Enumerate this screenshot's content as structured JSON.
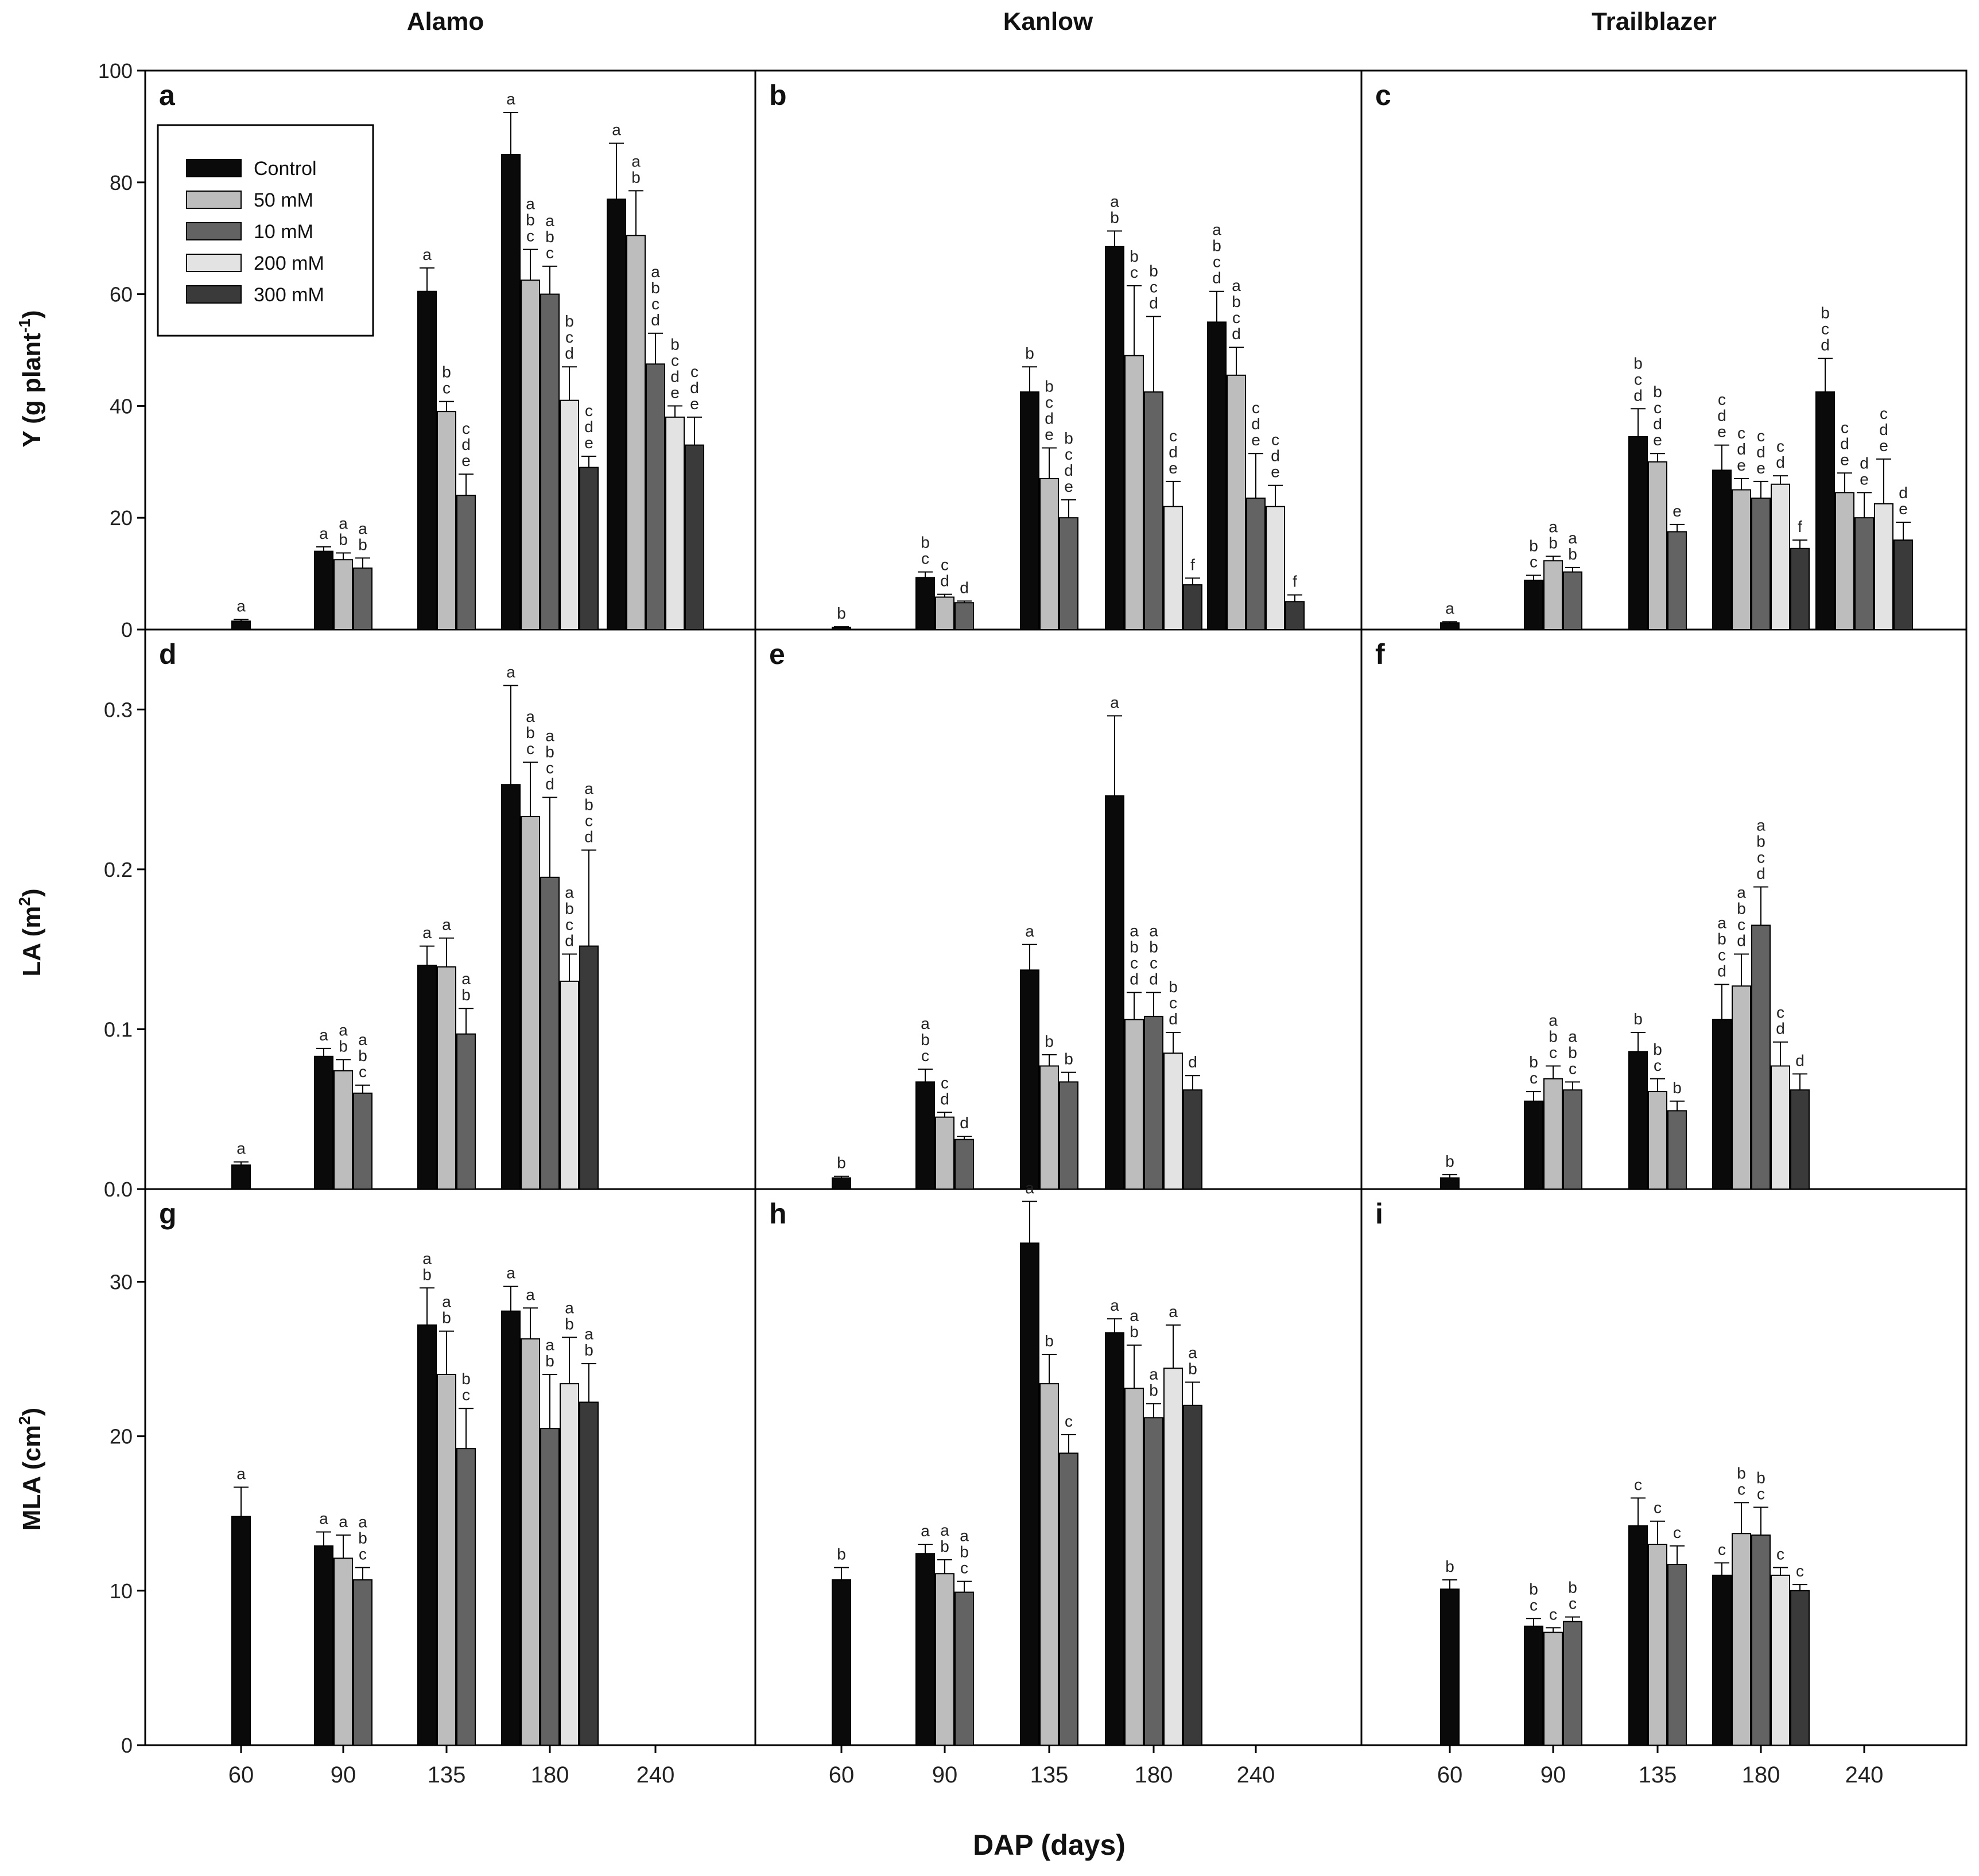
{
  "figure": {
    "columns": [
      "Alamo",
      "Kanlow",
      "Trailblazer"
    ],
    "ylabels": [
      {
        "main": "Y (g plant",
        "sup": "-1",
        "tail": ")"
      },
      {
        "main": "LA (m",
        "sup": "2",
        "tail": ")"
      },
      {
        "main": "MLA (cm",
        "sup": "2",
        "tail": ")"
      }
    ],
    "xlabel": "DAP (days)",
    "legend": [
      "Control",
      "50 mM",
      "10 mM",
      "200 mM",
      "300 mM"
    ]
  },
  "chart_data": {
    "type": "bar",
    "categories": [
      "60",
      "90",
      "135",
      "180",
      "240"
    ],
    "series_names": [
      "Control",
      "50 mM",
      "10 mM",
      "200 mM",
      "300 mM"
    ],
    "series_colors": [
      "#0a0a0a",
      "#bdbdbd",
      "#636363",
      "#e3e3e3",
      "#3a3a3a"
    ],
    "rows": [
      {
        "ylim": [
          0,
          100
        ],
        "yticks": [
          0,
          20,
          40,
          60,
          80,
          100
        ],
        "yticklabels": [
          "0",
          "20",
          "40",
          "60",
          "80",
          "100"
        ]
      },
      {
        "ylim": [
          0,
          0.35
        ],
        "yticks": [
          0,
          0.1,
          0.2,
          0.3
        ],
        "yticklabels": [
          "0.0",
          "0.1",
          "0.2",
          "0.3"
        ]
      },
      {
        "ylim": [
          0,
          36
        ],
        "yticks": [
          0,
          10,
          20,
          30
        ],
        "yticklabels": [
          "0",
          "10",
          "20",
          "30"
        ]
      }
    ],
    "panels": [
      {
        "id": "a",
        "row": 0,
        "col": 0,
        "groups": [
          {
            "cat": "60",
            "bars": [
              {
                "v": 1.5,
                "e": 0.3,
                "l": "a"
              }
            ]
          },
          {
            "cat": "90",
            "bars": [
              {
                "v": 14,
                "e": 0.8,
                "l": "a"
              },
              {
                "v": 12.5,
                "e": 1.2,
                "l": "ab"
              },
              {
                "v": 11,
                "e": 1.8,
                "l": "ab"
              }
            ]
          },
          {
            "cat": "135",
            "bars": [
              {
                "v": 60.5,
                "e": 4.2,
                "l": "a"
              },
              {
                "v": 39,
                "e": 1.8,
                "l": "bc"
              },
              {
                "v": 24,
                "e": 3.8,
                "l": "cde"
              }
            ]
          },
          {
            "cat": "180",
            "bars": [
              {
                "v": 85,
                "e": 7.5,
                "l": "a"
              },
              {
                "v": 62.5,
                "e": 5.5,
                "l": "abc"
              },
              {
                "v": 60,
                "e": 5,
                "l": "abc"
              },
              {
                "v": 41,
                "e": 6,
                "l": "bcd"
              },
              {
                "v": 29,
                "e": 2,
                "l": "cde"
              }
            ]
          },
          {
            "cat": "240",
            "bars": [
              {
                "v": 77,
                "e": 10,
                "l": "a"
              },
              {
                "v": 70.5,
                "e": 8,
                "l": "ab"
              },
              {
                "v": 47.5,
                "e": 5.5,
                "l": "abcd"
              },
              {
                "v": 38,
                "e": 2,
                "l": "bcde"
              },
              {
                "v": 33,
                "e": 5,
                "l": "cde"
              }
            ]
          }
        ]
      },
      {
        "id": "b",
        "row": 0,
        "col": 1,
        "groups": [
          {
            "cat": "60",
            "bars": [
              {
                "v": 0.4,
                "e": 0.1,
                "l": "b"
              }
            ]
          },
          {
            "cat": "90",
            "bars": [
              {
                "v": 9.3,
                "e": 1,
                "l": "bc"
              },
              {
                "v": 5.8,
                "e": 0.5,
                "l": "cd"
              },
              {
                "v": 4.8,
                "e": 0.3,
                "l": "d"
              }
            ]
          },
          {
            "cat": "135",
            "bars": [
              {
                "v": 42.5,
                "e": 4.5,
                "l": "b"
              },
              {
                "v": 27,
                "e": 5.5,
                "l": "bcde"
              },
              {
                "v": 20,
                "e": 3.2,
                "l": "bcde"
              }
            ]
          },
          {
            "cat": "180",
            "bars": [
              {
                "v": 68.5,
                "e": 2.8,
                "l": "ab"
              },
              {
                "v": 49,
                "e": 12.5,
                "l": "bc"
              },
              {
                "v": 42.5,
                "e": 13.5,
                "l": "bcd"
              },
              {
                "v": 22,
                "e": 4.5,
                "l": "cde"
              },
              {
                "v": 8,
                "e": 1.2,
                "l": "f"
              }
            ]
          },
          {
            "cat": "240",
            "bars": [
              {
                "v": 55,
                "e": 5.5,
                "l": "abcd"
              },
              {
                "v": 45.5,
                "e": 5,
                "l": "abcd"
              },
              {
                "v": 23.5,
                "e": 8,
                "l": "cde"
              },
              {
                "v": 22,
                "e": 3.8,
                "l": "cde"
              },
              {
                "v": 5,
                "e": 1.2,
                "l": "f"
              }
            ]
          }
        ]
      },
      {
        "id": "c",
        "row": 0,
        "col": 2,
        "groups": [
          {
            "cat": "60",
            "bars": [
              {
                "v": 1.2,
                "e": 0.2,
                "l": "a"
              }
            ]
          },
          {
            "cat": "90",
            "bars": [
              {
                "v": 8.8,
                "e": 0.9,
                "l": "bc"
              },
              {
                "v": 12.3,
                "e": 0.8,
                "l": "ab"
              },
              {
                "v": 10.3,
                "e": 0.8,
                "l": "ab"
              }
            ]
          },
          {
            "cat": "135",
            "bars": [
              {
                "v": 34.5,
                "e": 5,
                "l": "bcd"
              },
              {
                "v": 30,
                "e": 1.5,
                "l": "bcde"
              },
              {
                "v": 17.5,
                "e": 1.3,
                "l": "e"
              }
            ]
          },
          {
            "cat": "180",
            "bars": [
              {
                "v": 28.5,
                "e": 4.5,
                "l": "cde"
              },
              {
                "v": 25,
                "e": 2,
                "l": "cde"
              },
              {
                "v": 23.5,
                "e": 3,
                "l": "cde"
              },
              {
                "v": 26,
                "e": 1.5,
                "l": "cd"
              },
              {
                "v": 14.5,
                "e": 1.5,
                "l": "f"
              }
            ]
          },
          {
            "cat": "240",
            "bars": [
              {
                "v": 42.5,
                "e": 6,
                "l": "bcd"
              },
              {
                "v": 24.5,
                "e": 3.5,
                "l": "cde"
              },
              {
                "v": 20,
                "e": 4.5,
                "l": "de"
              },
              {
                "v": 22.5,
                "e": 8,
                "l": "cde"
              },
              {
                "v": 16,
                "e": 3.2,
                "l": "de"
              }
            ]
          }
        ]
      },
      {
        "id": "d",
        "row": 1,
        "col": 0,
        "groups": [
          {
            "cat": "60",
            "bars": [
              {
                "v": 0.015,
                "e": 0.002,
                "l": "a"
              }
            ]
          },
          {
            "cat": "90",
            "bars": [
              {
                "v": 0.083,
                "e": 0.005,
                "l": "a"
              },
              {
                "v": 0.074,
                "e": 0.007,
                "l": "ab"
              },
              {
                "v": 0.06,
                "e": 0.005,
                "l": "abc"
              }
            ]
          },
          {
            "cat": "135",
            "bars": [
              {
                "v": 0.14,
                "e": 0.012,
                "l": "a"
              },
              {
                "v": 0.139,
                "e": 0.018,
                "l": "a"
              },
              {
                "v": 0.097,
                "e": 0.016,
                "l": "ab"
              }
            ]
          },
          {
            "cat": "180",
            "bars": [
              {
                "v": 0.253,
                "e": 0.062,
                "l": "a"
              },
              {
                "v": 0.233,
                "e": 0.034,
                "l": "abc"
              },
              {
                "v": 0.195,
                "e": 0.05,
                "l": "abcd"
              },
              {
                "v": 0.13,
                "e": 0.017,
                "l": "abcd"
              },
              {
                "v": 0.152,
                "e": 0.06,
                "l": "abcd"
              }
            ]
          }
        ]
      },
      {
        "id": "e",
        "row": 1,
        "col": 1,
        "groups": [
          {
            "cat": "60",
            "bars": [
              {
                "v": 0.007,
                "e": 0.001,
                "l": "b"
              }
            ]
          },
          {
            "cat": "90",
            "bars": [
              {
                "v": 0.067,
                "e": 0.008,
                "l": "abc"
              },
              {
                "v": 0.045,
                "e": 0.003,
                "l": "cd"
              },
              {
                "v": 0.031,
                "e": 0.002,
                "l": "d"
              }
            ]
          },
          {
            "cat": "135",
            "bars": [
              {
                "v": 0.137,
                "e": 0.016,
                "l": "a"
              },
              {
                "v": 0.077,
                "e": 0.007,
                "l": "b"
              },
              {
                "v": 0.067,
                "e": 0.006,
                "l": "b"
              }
            ]
          },
          {
            "cat": "180",
            "bars": [
              {
                "v": 0.246,
                "e": 0.05,
                "l": "a"
              },
              {
                "v": 0.106,
                "e": 0.017,
                "l": "abcd"
              },
              {
                "v": 0.108,
                "e": 0.015,
                "l": "abcd"
              },
              {
                "v": 0.085,
                "e": 0.013,
                "l": "bcd"
              },
              {
                "v": 0.062,
                "e": 0.009,
                "l": "d"
              }
            ]
          }
        ]
      },
      {
        "id": "f",
        "row": 1,
        "col": 2,
        "groups": [
          {
            "cat": "60",
            "bars": [
              {
                "v": 0.007,
                "e": 0.002,
                "l": "b"
              }
            ]
          },
          {
            "cat": "90",
            "bars": [
              {
                "v": 0.055,
                "e": 0.006,
                "l": "bc"
              },
              {
                "v": 0.069,
                "e": 0.008,
                "l": "abc"
              },
              {
                "v": 0.062,
                "e": 0.005,
                "l": "abc"
              }
            ]
          },
          {
            "cat": "135",
            "bars": [
              {
                "v": 0.086,
                "e": 0.012,
                "l": "b"
              },
              {
                "v": 0.061,
                "e": 0.008,
                "l": "bc"
              },
              {
                "v": 0.049,
                "e": 0.006,
                "l": "b"
              }
            ]
          },
          {
            "cat": "180",
            "bars": [
              {
                "v": 0.106,
                "e": 0.022,
                "l": "abcd"
              },
              {
                "v": 0.127,
                "e": 0.02,
                "l": "abcd"
              },
              {
                "v": 0.165,
                "e": 0.024,
                "l": "abcd"
              },
              {
                "v": 0.077,
                "e": 0.015,
                "l": "cd"
              },
              {
                "v": 0.062,
                "e": 0.01,
                "l": "d"
              }
            ]
          }
        ]
      },
      {
        "id": "g",
        "row": 2,
        "col": 0,
        "groups": [
          {
            "cat": "60",
            "bars": [
              {
                "v": 14.8,
                "e": 1.9,
                "l": "a"
              }
            ]
          },
          {
            "cat": "90",
            "bars": [
              {
                "v": 12.9,
                "e": 0.9,
                "l": "a"
              },
              {
                "v": 12.1,
                "e": 1.5,
                "l": "a"
              },
              {
                "v": 10.7,
                "e": 0.8,
                "l": "abc"
              }
            ]
          },
          {
            "cat": "135",
            "bars": [
              {
                "v": 27.2,
                "e": 2.4,
                "l": "ab"
              },
              {
                "v": 24,
                "e": 2.8,
                "l": "ab"
              },
              {
                "v": 19.2,
                "e": 2.6,
                "l": "bc"
              }
            ]
          },
          {
            "cat": "180",
            "bars": [
              {
                "v": 28.1,
                "e": 1.6,
                "l": "a"
              },
              {
                "v": 26.3,
                "e": 2,
                "l": "a"
              },
              {
                "v": 20.5,
                "e": 3.5,
                "l": "ab"
              },
              {
                "v": 23.4,
                "e": 3,
                "l": "ab"
              },
              {
                "v": 22.2,
                "e": 2.5,
                "l": "ab"
              }
            ]
          }
        ]
      },
      {
        "id": "h",
        "row": 2,
        "col": 1,
        "groups": [
          {
            "cat": "60",
            "bars": [
              {
                "v": 10.7,
                "e": 0.8,
                "l": "b"
              }
            ]
          },
          {
            "cat": "90",
            "bars": [
              {
                "v": 12.4,
                "e": 0.6,
                "l": "a"
              },
              {
                "v": 11.1,
                "e": 0.9,
                "l": "ab"
              },
              {
                "v": 9.9,
                "e": 0.7,
                "l": "abc"
              }
            ]
          },
          {
            "cat": "135",
            "bars": [
              {
                "v": 32.5,
                "e": 2.7,
                "l": "a"
              },
              {
                "v": 23.4,
                "e": 1.9,
                "l": "b"
              },
              {
                "v": 18.9,
                "e": 1.2,
                "l": "c"
              }
            ]
          },
          {
            "cat": "180",
            "bars": [
              {
                "v": 26.7,
                "e": 0.9,
                "l": "a"
              },
              {
                "v": 23.1,
                "e": 2.8,
                "l": "ab"
              },
              {
                "v": 21.2,
                "e": 0.9,
                "l": "ab"
              },
              {
                "v": 24.4,
                "e": 2.8,
                "l": "a"
              },
              {
                "v": 22,
                "e": 1.5,
                "l": "ab"
              }
            ]
          }
        ]
      },
      {
        "id": "i",
        "row": 2,
        "col": 2,
        "groups": [
          {
            "cat": "60",
            "bars": [
              {
                "v": 10.1,
                "e": 0.6,
                "l": "b"
              }
            ]
          },
          {
            "cat": "90",
            "bars": [
              {
                "v": 7.7,
                "e": 0.5,
                "l": "bc"
              },
              {
                "v": 7.3,
                "e": 0.3,
                "l": "c"
              },
              {
                "v": 8,
                "e": 0.3,
                "l": "bc"
              }
            ]
          },
          {
            "cat": "135",
            "bars": [
              {
                "v": 14.2,
                "e": 1.8,
                "l": "c"
              },
              {
                "v": 13,
                "e": 1.5,
                "l": "c"
              },
              {
                "v": 11.7,
                "e": 1.2,
                "l": "c"
              }
            ]
          },
          {
            "cat": "180",
            "bars": [
              {
                "v": 11,
                "e": 0.8,
                "l": "c"
              },
              {
                "v": 13.7,
                "e": 2,
                "l": "bc"
              },
              {
                "v": 13.6,
                "e": 1.8,
                "l": "bc"
              },
              {
                "v": 11,
                "e": 0.5,
                "l": "c"
              },
              {
                "v": 10,
                "e": 0.4,
                "l": "c"
              }
            ]
          }
        ]
      }
    ]
  }
}
